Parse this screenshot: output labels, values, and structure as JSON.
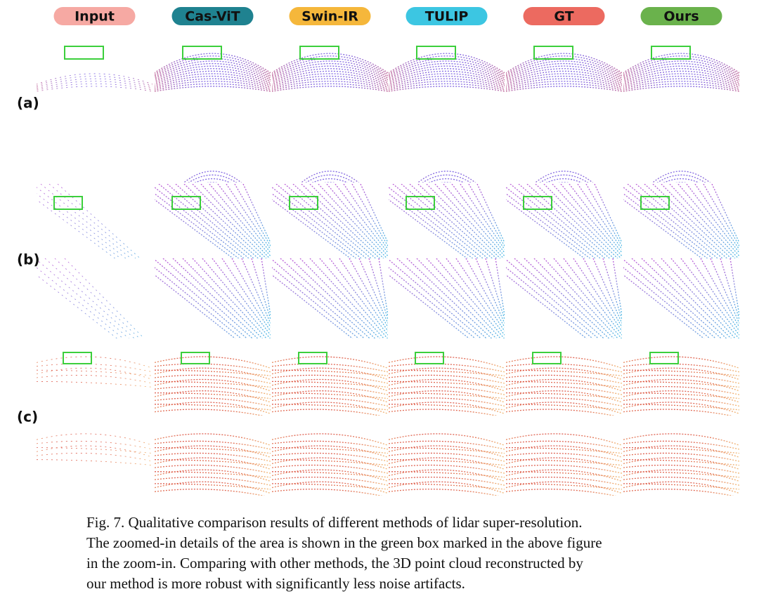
{
  "header": {
    "columns": [
      "Input",
      "Cas-ViT",
      "Swin-IR",
      "TULIP",
      "GT",
      "Ours"
    ]
  },
  "rows": [
    {
      "label": "(a)"
    },
    {
      "label": "(b)"
    },
    {
      "label": "(c)"
    }
  ],
  "caption": {
    "lines": [
      "Fig. 7.  Qualitative comparison results of different methods of lidar super-resolution.",
      "The zoomed-in details of the area is shown in the green box marked in the above figure",
      "in the zoom-in.  Comparing with other methods, the 3D point cloud reconstructed by",
      "our method is more robust with significantly less noise artifacts."
    ]
  }
}
